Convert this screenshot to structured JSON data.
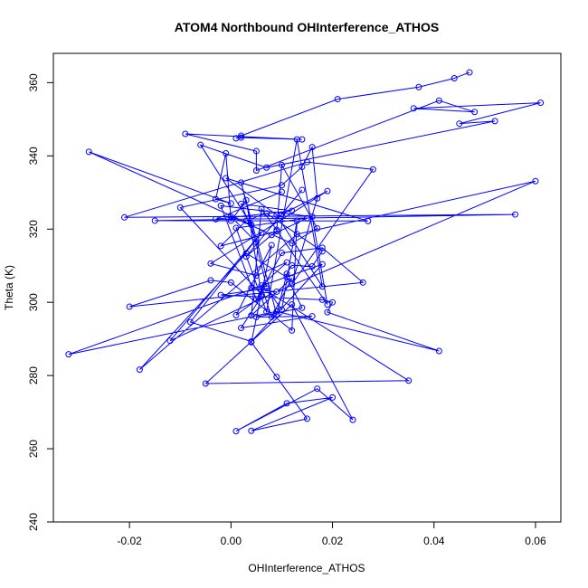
{
  "chart_data": {
    "type": "line",
    "title": "ATOM4 Northbound OHInterference_ATHOS",
    "xlabel": "OHInterference_ATHOS",
    "ylabel": "Theta (K)",
    "xlim": [
      -0.035,
      0.065
    ],
    "ylim": [
      240,
      368
    ],
    "x_ticks": [
      -0.02,
      0.0,
      0.02,
      0.04,
      0.06
    ],
    "x_tick_labels": [
      "-0.02",
      "0.00",
      "0.02",
      "0.04",
      "0.06"
    ],
    "y_ticks": [
      240,
      260,
      280,
      300,
      320,
      340,
      360
    ],
    "y_tick_labels": [
      "240",
      "260",
      "280",
      "300",
      "320",
      "340",
      "360"
    ],
    "grid": false,
    "series": [
      {
        "color": "#0000ff",
        "marker": "open-circle",
        "line": true,
        "x": [
          0.047,
          0.044,
          0.037,
          0.021,
          0.002,
          0.001,
          0.002,
          0.014,
          -0.009,
          0.005,
          0.005,
          0.041,
          0.048,
          0.036,
          0.061,
          0.045,
          0.052,
          0.007,
          -0.006,
          0.004,
          -0.028,
          0.0,
          -0.003,
          -0.001,
          0.0,
          0.003,
          0.006,
          -0.01,
          0.01,
          0.014,
          0.016,
          0.017,
          0.012,
          0.028,
          0.015,
          -0.021,
          0.056,
          -0.015,
          0.027,
          -0.001,
          0.009,
          0.018,
          0.013,
          0.007,
          0.001,
          0.015,
          0.008,
          0.003,
          0.014,
          0.01,
          0.019,
          -0.004,
          0.005,
          0.011,
          0.006,
          0.008,
          0.012,
          0.004,
          0.006,
          0.009,
          0.019,
          0.016,
          -0.002,
          0.005,
          0.01,
          0.018,
          0.026,
          -0.02,
          -0.004,
          0.0,
          0.012,
          0.013,
          0.01,
          0.007,
          -0.002,
          0.018,
          0.02,
          0.019,
          0.041,
          0.009,
          -0.032,
          0.018,
          0.004,
          -0.008,
          0.006,
          -0.012,
          0.008,
          0.035,
          -0.005,
          0.012,
          0.024,
          0.017,
          0.001,
          0.011,
          0.02,
          0.004,
          0.015,
          0.009,
          0.004,
          0.008,
          0.001,
          0.006,
          0.002,
          0.016,
          0.005,
          0.014,
          0.011,
          0.003,
          -0.018,
          0.013,
          0.06,
          0.009,
          0.004,
          0.007,
          0.002,
          0.009,
          0.011,
          0.012,
          0.016,
          0.018,
          0.007,
          0.003,
          -0.002,
          0.009,
          0.01,
          0.017,
          0.012,
          0.0,
          0.005,
          0.002,
          0.012,
          -0.003,
          0.01
        ],
        "y": [
          362.8,
          361.2,
          358.8,
          355.5,
          345.5,
          344.8,
          345.0,
          344.5,
          346.0,
          341.3,
          336.0,
          355.1,
          352.0,
          353.0,
          354.5,
          348.8,
          349.5,
          336.8,
          343.0,
          321.2,
          341.1,
          327.0,
          328.2,
          340.7,
          322.3,
          327.9,
          302.2,
          325.9,
          332.0,
          337.0,
          342.4,
          328.4,
          305.0,
          336.3,
          338.3,
          323.2,
          324.0,
          322.3,
          322.2,
          333.9,
          323.9,
          304.3,
          344.5,
          297.4,
          320.3,
          323.0,
          318.4,
          312.5,
          330.7,
          324.0,
          330.4,
          310.6,
          307.3,
          310.9,
          304.6,
          296.0,
          306.6,
          296.4,
          325.5,
          319.8,
          299.4,
          323.4,
          326.4,
          300.8,
          313.5,
          314.9,
          305.4,
          298.8,
          306.0,
          305.4,
          292.3,
          322.3,
          298.0,
          303.8,
          302.0,
          300.7,
          300.0,
          297.3,
          286.7,
          297.5,
          285.8,
          310.4,
          289.3,
          294.6,
          319.0,
          289.5,
          302.3,
          278.6,
          277.8,
          299.4,
          267.9,
          276.4,
          264.8,
          272.4,
          274.0,
          264.9,
          268.2,
          279.6,
          289.1,
          315.6,
          296.5,
          301.6,
          293.0,
          296.2,
          296.0,
          298.5,
          306.9,
          313.4,
          281.6,
          318.6,
          333.1,
          302.9,
          303.9,
          304.4,
          332.7,
          296.7,
          307.8,
          310.1,
          309.8,
          313.9,
          324.3,
          322.3,
          315.4,
          319.4,
          337.5,
          320.2,
          316.1,
          323.4,
          316.4,
          326.9,
          325.0,
          322.7,
          330.2
        ]
      }
    ]
  }
}
